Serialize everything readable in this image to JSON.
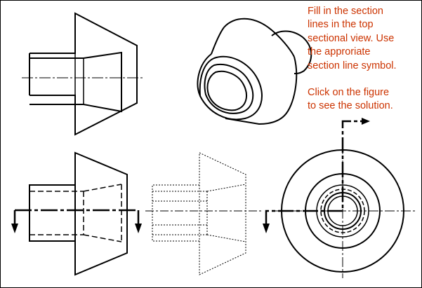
{
  "instructions": {
    "line1": "Fill in the section",
    "line2": "lines in the top",
    "line3": "sectional view.  Use",
    "line4": "the approriate",
    "line5": "section line symbol.",
    "line6": "Click on the figure",
    "line7": "to see the solution."
  },
  "colors": {
    "instruction_text": "#cc3300",
    "line": "#000000",
    "background": "#ffffff"
  }
}
